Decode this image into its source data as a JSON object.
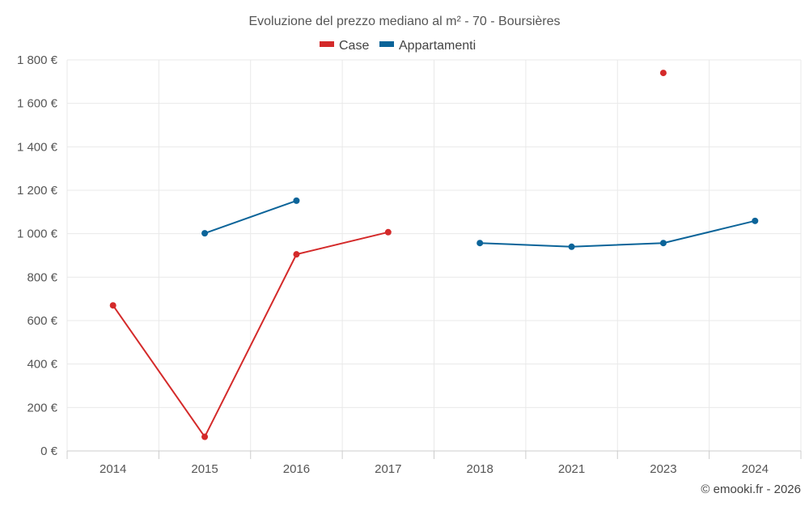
{
  "chart_data": {
    "type": "line",
    "title": "Evoluzione del prezzo mediano al m² - 70 - Boursières",
    "categories": [
      "2014",
      "2015",
      "2016",
      "2017",
      "2018",
      "2021",
      "2023",
      "2024"
    ],
    "ylim": [
      0,
      1800
    ],
    "yticks": [
      0,
      200,
      400,
      600,
      800,
      1000,
      1200,
      1400,
      1600,
      1800
    ],
    "ytick_labels": [
      "0 €",
      "200 €",
      "400 €",
      "600 €",
      "800 €",
      "1 000 €",
      "1 200 €",
      "1 400 €",
      "1 600 €",
      "1 800 €"
    ],
    "grid": true,
    "legend_position": "top-center",
    "series": [
      {
        "name": "Case",
        "color": "#d42a2a",
        "values": [
          670,
          65,
          905,
          1007,
          null,
          null,
          1740,
          null
        ]
      },
      {
        "name": "Appartamenti",
        "color": "#0b6499",
        "values": [
          null,
          1002,
          1152,
          null,
          957,
          940,
          957,
          1059
        ]
      }
    ]
  },
  "credit": "© emooki.fr - 2026"
}
